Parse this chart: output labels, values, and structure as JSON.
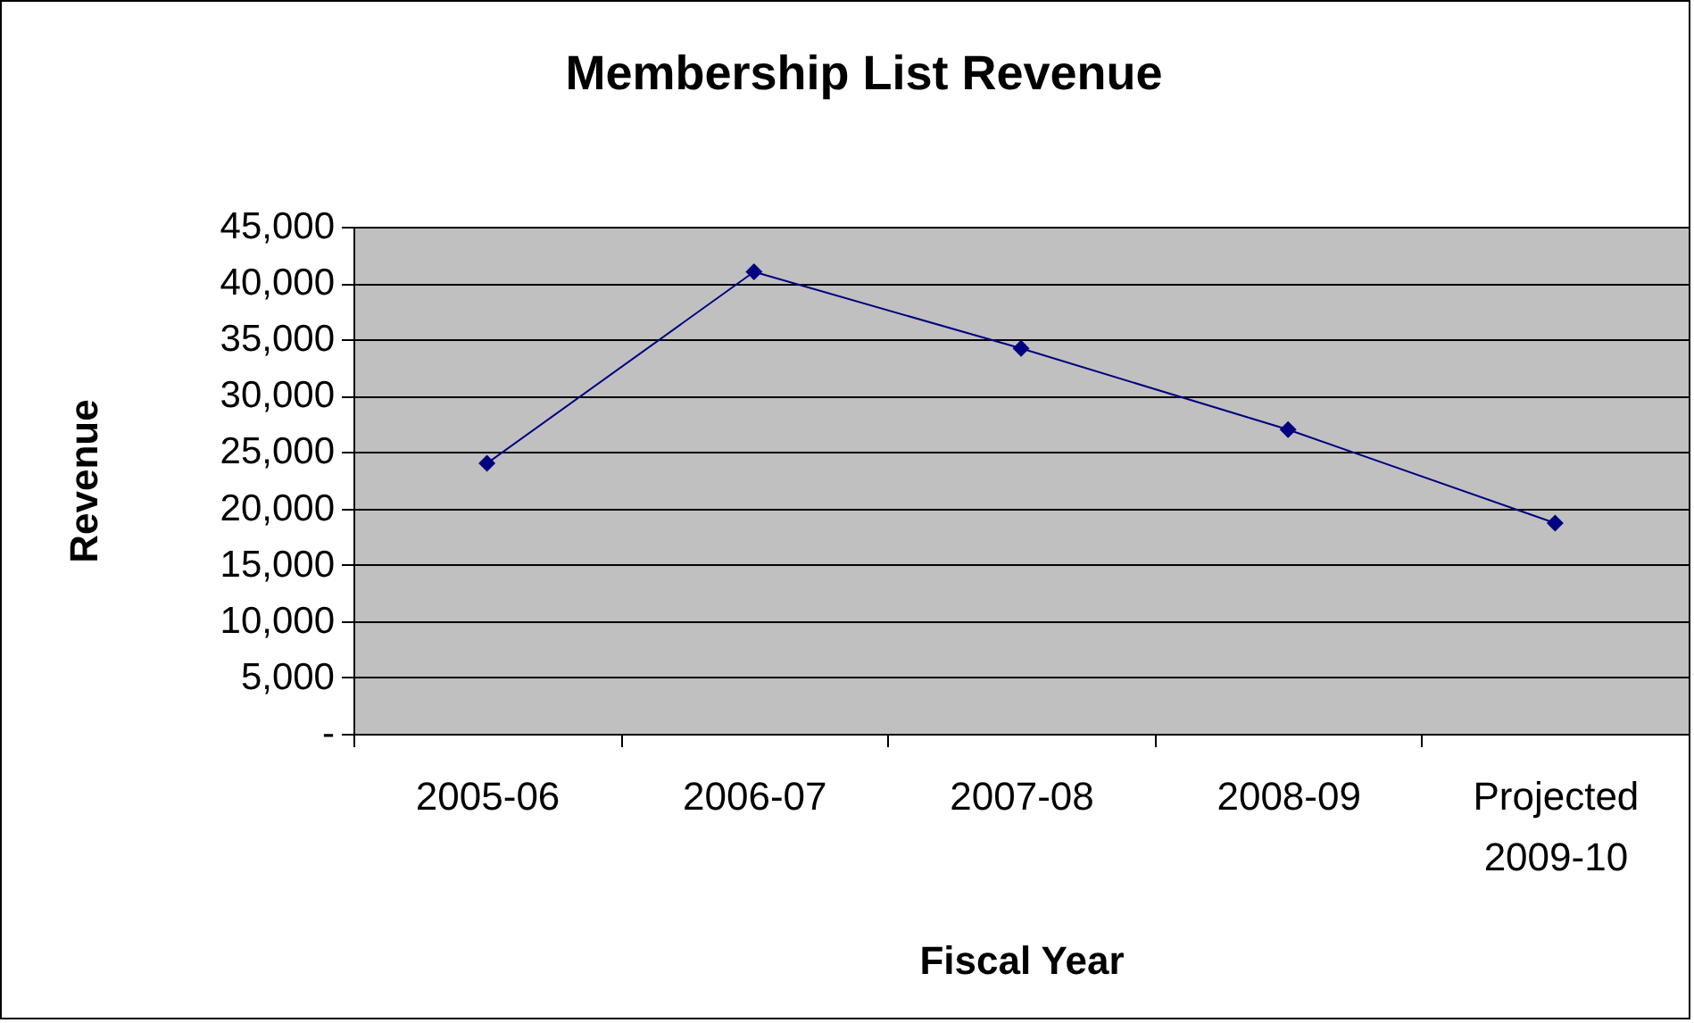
{
  "chart_data": {
    "type": "line",
    "title": "Membership List Revenue",
    "xlabel": "Fiscal Year",
    "ylabel": "Revenue",
    "categories": [
      "2005-06",
      "2006-07",
      "2007-08",
      "2008-09",
      "Projected 2009-10"
    ],
    "series": [
      {
        "color": "#000080",
        "values": [
          24000,
          41000,
          34200,
          27000,
          18700
        ]
      }
    ],
    "ylim": [
      0,
      45000
    ],
    "yticks": [
      {
        "value": 0,
        "label": "-"
      },
      {
        "value": 5000,
        "label": "5,000"
      },
      {
        "value": 10000,
        "label": "10,000"
      },
      {
        "value": 15000,
        "label": "15,000"
      },
      {
        "value": 20000,
        "label": "20,000"
      },
      {
        "value": 25000,
        "label": "25,000"
      },
      {
        "value": 30000,
        "label": "30,000"
      },
      {
        "value": 35000,
        "label": "35,000"
      },
      {
        "value": 40000,
        "label": "40,000"
      },
      {
        "value": 45000,
        "label": "45,000"
      }
    ],
    "grid": "y",
    "marker": "diamond",
    "line_style": "solid",
    "legend": false
  }
}
